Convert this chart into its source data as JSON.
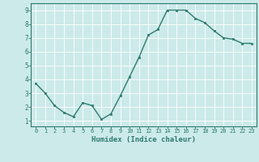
{
  "x": [
    0,
    1,
    2,
    3,
    4,
    5,
    6,
    7,
    8,
    9,
    10,
    11,
    12,
    13,
    14,
    15,
    16,
    17,
    18,
    19,
    20,
    21,
    22,
    23
  ],
  "y": [
    3.7,
    3.0,
    2.1,
    1.6,
    1.3,
    2.3,
    2.1,
    1.1,
    1.5,
    2.8,
    4.2,
    5.6,
    7.2,
    7.6,
    9.0,
    9.0,
    9.0,
    8.4,
    8.1,
    7.5,
    7.0,
    6.9,
    6.6,
    6.6
  ],
  "line_color": "#2d7a6e",
  "marker": "s",
  "markersize": 2.0,
  "linewidth": 1.0,
  "xlabel": "Humidex (Indice chaleur)",
  "xlabel_fontsize": 6.5,
  "bg_color": "#cceaea",
  "grid_color": "#ffffff",
  "tick_color": "#2d7a6e",
  "spine_color": "#2d7a6e",
  "ylim": [
    0.6,
    9.5
  ],
  "xlim": [
    -0.5,
    23.5
  ],
  "yticks": [
    1,
    2,
    3,
    4,
    5,
    6,
    7,
    8,
    9
  ],
  "xticks": [
    0,
    1,
    2,
    3,
    4,
    5,
    6,
    7,
    8,
    9,
    10,
    11,
    12,
    13,
    14,
    15,
    16,
    17,
    18,
    19,
    20,
    21,
    22,
    23
  ],
  "tick_fontsize": 5.0,
  "ytick_fontsize": 5.5
}
